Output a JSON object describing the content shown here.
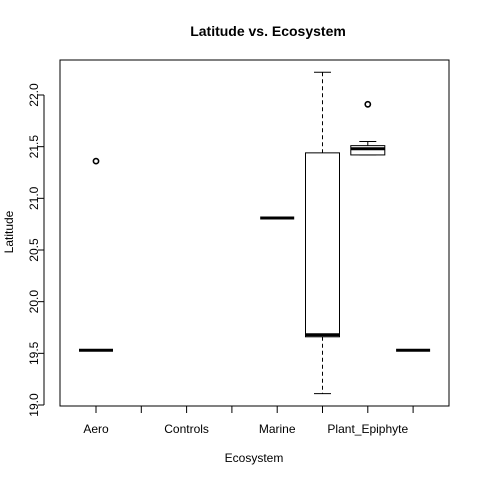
{
  "chart_data": {
    "type": "boxplot",
    "title": "Latitude vs. Ecosystem",
    "xlabel": "Ecosystem",
    "ylabel": "Latitude",
    "ylim": [
      19.0,
      22.3
    ],
    "yticks": [
      19.0,
      19.5,
      20.0,
      20.5,
      21.0,
      21.5,
      22.0
    ],
    "ytick_labels": [
      "19.0",
      "19.5",
      "20.0",
      "20.5",
      "21.0",
      "21.5",
      "22.0"
    ],
    "categories": [
      "Aero",
      "",
      "Controls",
      "",
      "Marine",
      "",
      "Plant_Epiphyte",
      ""
    ],
    "boxes": [
      {
        "category_index": 0,
        "min": 19.53,
        "q1": 19.53,
        "median": 19.53,
        "q3": 19.53,
        "max": 19.53,
        "outliers": [
          21.36
        ]
      },
      {
        "category_index": 4,
        "min": 20.81,
        "q1": 20.81,
        "median": 20.81,
        "q3": 20.81,
        "max": 20.81,
        "outliers": []
      },
      {
        "category_index": 5,
        "min": 19.11,
        "q1": 19.66,
        "median": 19.68,
        "q3": 21.44,
        "max": 22.22,
        "outliers": []
      },
      {
        "category_index": 6,
        "min": 21.42,
        "q1": 21.42,
        "median": 21.48,
        "q3": 21.51,
        "max": 21.55,
        "outliers": [
          21.91
        ]
      },
      {
        "category_index": 7,
        "min": 19.53,
        "q1": 19.53,
        "median": 19.53,
        "q3": 19.53,
        "max": 19.53,
        "outliers": []
      }
    ],
    "grid": false,
    "legend": "none"
  }
}
